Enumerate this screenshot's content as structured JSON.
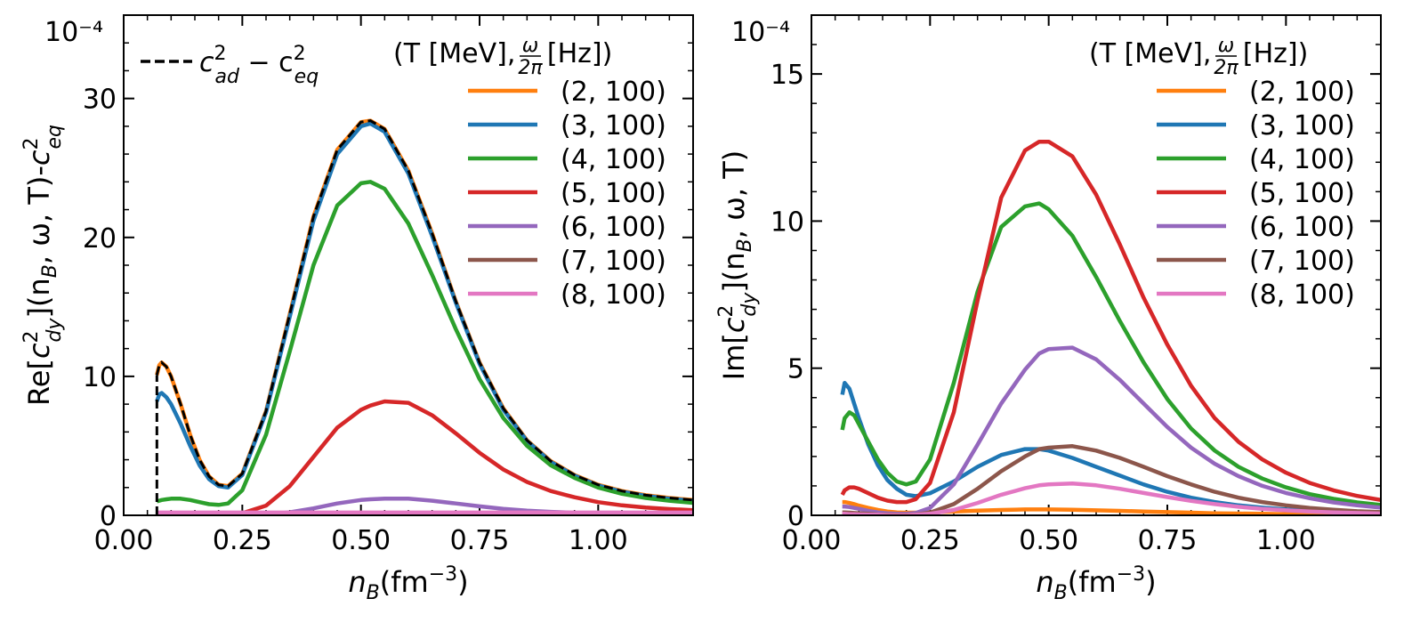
{
  "chart_data": [
    {
      "type": "line",
      "panel": "left",
      "title": "",
      "exponent_label": "10⁻⁴",
      "xlabel": {
        "base": "n",
        "sub": "B",
        "unit": "(fm",
        "sup": "−3",
        "close": ")"
      },
      "ylabel": {
        "pre": "Re[",
        "c": "c",
        "sup": "2",
        "sub": "dy",
        "args": "](n",
        "argsub": "B",
        "rest": ", ω, T)-",
        "c2": "c",
        "sup2": "2",
        "sub2": "eq"
      },
      "xlim": [
        0.0,
        1.2
      ],
      "ylim": [
        0,
        36
      ],
      "xticks": [
        0.0,
        0.25,
        0.5,
        0.75,
        1.0
      ],
      "xtick_labels": [
        "0.00",
        "0.25",
        "0.50",
        "0.75",
        "1.00"
      ],
      "yticks": [
        0,
        10,
        20,
        30
      ],
      "ytick_labels": [
        "0",
        "10",
        "20",
        "30"
      ],
      "reference_legend": {
        "label_pre": "c",
        "sup": "2",
        "sub": "ad",
        "minus": " − c",
        "sup2": "2",
        "sub2": "eq",
        "location": "top-left"
      },
      "legend_title": {
        "pre": "(T [MeV], ",
        "frac_num": "ω",
        "frac_den": "2π",
        "post": " [Hz])"
      },
      "x": [
        0.07,
        0.075,
        0.08,
        0.09,
        0.1,
        0.12,
        0.14,
        0.16,
        0.18,
        0.2,
        0.22,
        0.25,
        0.3,
        0.35,
        0.4,
        0.45,
        0.5,
        0.52,
        0.55,
        0.6,
        0.65,
        0.7,
        0.75,
        0.8,
        0.85,
        0.9,
        0.95,
        1.0,
        1.05,
        1.1,
        1.15,
        1.2
      ],
      "reference_series": {
        "name": "c_ad^2 - c_eq^2",
        "style": "dashed",
        "color": "#000000",
        "values": [
          10.1,
          10.8,
          11.0,
          10.7,
          10.0,
          8.0,
          5.8,
          4.0,
          2.8,
          2.2,
          2.1,
          3.0,
          7.5,
          14.5,
          21.5,
          26.3,
          28.3,
          28.4,
          27.8,
          24.8,
          20.3,
          15.4,
          11.0,
          7.7,
          5.4,
          3.9,
          2.9,
          2.2,
          1.75,
          1.45,
          1.25,
          1.1
        ]
      },
      "series": [
        {
          "name": "(2, 100)",
          "color": "#ff7f0e",
          "values": [
            10.1,
            10.8,
            11.0,
            10.7,
            10.0,
            8.0,
            5.8,
            4.0,
            2.8,
            2.2,
            2.1,
            3.0,
            7.5,
            14.5,
            21.5,
            26.3,
            28.3,
            28.4,
            27.8,
            24.8,
            20.3,
            15.4,
            11.0,
            7.7,
            5.4,
            3.9,
            2.9,
            2.2,
            1.75,
            1.45,
            1.25,
            1.1
          ]
        },
        {
          "name": "(3, 100)",
          "color": "#1f77b4",
          "values": [
            8.2,
            8.7,
            8.8,
            8.5,
            8.0,
            6.6,
            5.0,
            3.6,
            2.6,
            2.1,
            2.0,
            2.9,
            7.4,
            14.3,
            21.2,
            26.0,
            28.0,
            28.2,
            27.6,
            24.6,
            20.1,
            15.3,
            10.9,
            7.6,
            5.35,
            3.85,
            2.85,
            2.15,
            1.7,
            1.4,
            1.2,
            1.05
          ]
        },
        {
          "name": "(4, 100)",
          "color": "#2ca02c",
          "values": [
            1.0,
            1.05,
            1.1,
            1.15,
            1.2,
            1.2,
            1.1,
            0.95,
            0.8,
            0.75,
            0.85,
            1.8,
            5.8,
            11.8,
            18.0,
            22.3,
            23.9,
            24.0,
            23.5,
            21.0,
            17.3,
            13.4,
            9.8,
            7.0,
            5.0,
            3.6,
            2.7,
            2.0,
            1.55,
            1.25,
            1.05,
            0.9
          ]
        },
        {
          "name": "(5, 100)",
          "color": "#d62728",
          "values": [
            0.03,
            0.03,
            0.03,
            0.03,
            0.03,
            0.03,
            0.03,
            0.03,
            0.03,
            0.04,
            0.06,
            0.15,
            0.7,
            2.1,
            4.2,
            6.3,
            7.6,
            7.9,
            8.2,
            8.1,
            7.2,
            5.9,
            4.5,
            3.3,
            2.4,
            1.75,
            1.3,
            0.95,
            0.72,
            0.56,
            0.45,
            0.37
          ]
        },
        {
          "name": "(6, 100)",
          "color": "#9467bd",
          "values": [
            0.0,
            0.0,
            0.0,
            0.0,
            0.0,
            0.0,
            0.0,
            0.0,
            0.0,
            0.0,
            0.0,
            0.01,
            0.06,
            0.22,
            0.5,
            0.85,
            1.1,
            1.15,
            1.2,
            1.2,
            1.05,
            0.85,
            0.65,
            0.47,
            0.34,
            0.25,
            0.18,
            0.13,
            0.1,
            0.08,
            0.06,
            0.05
          ]
        },
        {
          "name": "(7, 100)",
          "color": "#8c564b",
          "values": [
            0.0,
            0.0,
            0.0,
            0.0,
            0.0,
            0.0,
            0.0,
            0.0,
            0.0,
            0.0,
            0.0,
            0.0,
            0.01,
            0.03,
            0.06,
            0.09,
            0.12,
            0.12,
            0.13,
            0.13,
            0.11,
            0.09,
            0.07,
            0.05,
            0.04,
            0.03,
            0.02,
            0.02,
            0.01,
            0.01,
            0.01,
            0.01
          ]
        },
        {
          "name": "(8, 100)",
          "color": "#e377c2",
          "values": [
            0.2,
            0.2,
            0.2,
            0.2,
            0.2,
            0.2,
            0.2,
            0.2,
            0.2,
            0.2,
            0.2,
            0.2,
            0.2,
            0.2,
            0.2,
            0.2,
            0.2,
            0.2,
            0.2,
            0.2,
            0.2,
            0.2,
            0.2,
            0.2,
            0.2,
            0.2,
            0.2,
            0.2,
            0.2,
            0.2,
            0.2,
            0.2
          ]
        }
      ],
      "legend_location": "top-right"
    },
    {
      "type": "line",
      "panel": "right",
      "title": "",
      "exponent_label": "10⁻⁴",
      "xlabel": {
        "base": "n",
        "sub": "B",
        "unit": "(fm",
        "sup": "−3",
        "close": ")"
      },
      "ylabel": {
        "pre": "Im[",
        "c": "c",
        "sup": "2",
        "sub": "dy",
        "args": "](n",
        "argsub": "B",
        "rest": ", ω, T)"
      },
      "xlim": [
        0.0,
        1.2
      ],
      "ylim": [
        0,
        17
      ],
      "xticks": [
        0.0,
        0.25,
        0.5,
        0.75,
        1.0
      ],
      "xtick_labels": [
        "0.00",
        "0.25",
        "0.50",
        "0.75",
        "1.00"
      ],
      "yticks": [
        0,
        5,
        10,
        15
      ],
      "ytick_labels": [
        "0",
        "5",
        "10",
        "15"
      ],
      "legend_title": {
        "pre": "(T [MeV], ",
        "frac_num": "ω",
        "frac_den": "2π",
        "post": " [Hz])"
      },
      "x": [
        0.065,
        0.07,
        0.08,
        0.09,
        0.1,
        0.12,
        0.14,
        0.16,
        0.18,
        0.2,
        0.22,
        0.25,
        0.3,
        0.35,
        0.4,
        0.45,
        0.48,
        0.5,
        0.55,
        0.6,
        0.65,
        0.7,
        0.75,
        0.8,
        0.85,
        0.9,
        0.95,
        1.0,
        1.05,
        1.1,
        1.15,
        1.2
      ],
      "series": [
        {
          "name": "(2, 100)",
          "color": "#ff7f0e",
          "values": [
            0.45,
            0.45,
            0.42,
            0.38,
            0.33,
            0.25,
            0.18,
            0.13,
            0.1,
            0.09,
            0.09,
            0.1,
            0.13,
            0.16,
            0.18,
            0.2,
            0.2,
            0.2,
            0.19,
            0.17,
            0.15,
            0.13,
            0.11,
            0.09,
            0.07,
            0.06,
            0.05,
            0.04,
            0.03,
            0.03,
            0.02,
            0.02
          ]
        },
        {
          "name": "(3, 100)",
          "color": "#1f77b4",
          "values": [
            4.1,
            4.5,
            4.3,
            3.8,
            3.3,
            2.4,
            1.7,
            1.2,
            0.9,
            0.7,
            0.65,
            0.75,
            1.15,
            1.65,
            2.05,
            2.25,
            2.25,
            2.2,
            1.95,
            1.65,
            1.35,
            1.05,
            0.8,
            0.6,
            0.45,
            0.34,
            0.26,
            0.2,
            0.15,
            0.12,
            0.1,
            0.08
          ]
        },
        {
          "name": "(4, 100)",
          "color": "#2ca02c",
          "values": [
            2.9,
            3.3,
            3.5,
            3.4,
            3.1,
            2.5,
            1.9,
            1.45,
            1.15,
            1.05,
            1.15,
            1.9,
            4.5,
            7.6,
            9.8,
            10.5,
            10.6,
            10.4,
            9.5,
            8.1,
            6.6,
            5.2,
            3.95,
            2.95,
            2.2,
            1.65,
            1.25,
            0.95,
            0.72,
            0.56,
            0.44,
            0.35
          ]
        },
        {
          "name": "(5, 100)",
          "color": "#d62728",
          "values": [
            0.7,
            0.85,
            0.95,
            0.95,
            0.9,
            0.75,
            0.6,
            0.5,
            0.45,
            0.45,
            0.55,
            1.1,
            3.5,
            7.3,
            10.8,
            12.4,
            12.7,
            12.7,
            12.2,
            10.9,
            9.2,
            7.4,
            5.8,
            4.4,
            3.3,
            2.5,
            1.9,
            1.45,
            1.1,
            0.85,
            0.66,
            0.52
          ]
        },
        {
          "name": "(6, 100)",
          "color": "#9467bd",
          "values": [
            0.3,
            0.3,
            0.28,
            0.25,
            0.22,
            0.15,
            0.1,
            0.07,
            0.05,
            0.05,
            0.08,
            0.25,
            1.05,
            2.4,
            3.8,
            4.95,
            5.5,
            5.65,
            5.7,
            5.3,
            4.6,
            3.8,
            3.0,
            2.3,
            1.75,
            1.33,
            1.0,
            0.76,
            0.58,
            0.44,
            0.34,
            0.26
          ]
        },
        {
          "name": "(7, 100)",
          "color": "#8c564b",
          "values": [
            0.1,
            0.1,
            0.09,
            0.08,
            0.07,
            0.05,
            0.03,
            0.02,
            0.02,
            0.02,
            0.03,
            0.09,
            0.38,
            0.9,
            1.5,
            2.0,
            2.25,
            2.3,
            2.35,
            2.2,
            1.95,
            1.65,
            1.33,
            1.05,
            0.8,
            0.6,
            0.45,
            0.34,
            0.25,
            0.19,
            0.14,
            0.11
          ]
        },
        {
          "name": "(8, 100)",
          "color": "#e377c2",
          "values": [
            0.05,
            0.05,
            0.04,
            0.04,
            0.03,
            0.02,
            0.02,
            0.01,
            0.01,
            0.01,
            0.02,
            0.05,
            0.18,
            0.42,
            0.7,
            0.92,
            1.02,
            1.05,
            1.08,
            1.02,
            0.9,
            0.76,
            0.62,
            0.49,
            0.38,
            0.29,
            0.22,
            0.17,
            0.13,
            0.1,
            0.08,
            0.06
          ]
        }
      ],
      "legend_location": "top-right"
    }
  ]
}
